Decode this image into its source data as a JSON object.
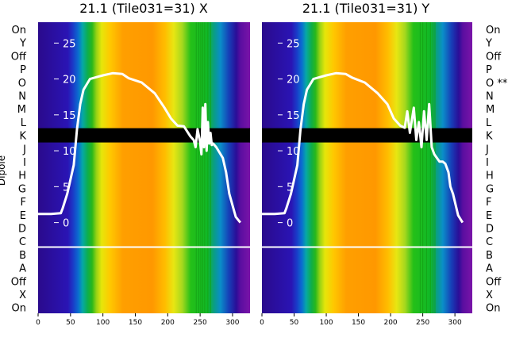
{
  "chart_data": [
    {
      "type": "heatmap",
      "title": "21.1 (Tile031=31) X",
      "ylabel": "Dipole",
      "row_labels_left": [
        "On",
        "Y",
        "Off",
        "P",
        "O",
        "N",
        "M",
        "L",
        "K",
        "J",
        "I",
        "H",
        "G",
        "F",
        "E",
        "D",
        "C",
        "B",
        "A",
        "Off",
        "X",
        "On"
      ],
      "xlim": [
        0,
        327
      ],
      "xticks": [
        0,
        50,
        100,
        150,
        200,
        250,
        300
      ],
      "overlay_ylim": [
        -2.5,
        27.5
      ],
      "overlay_yticks": [
        0,
        5,
        10,
        15,
        20,
        25
      ],
      "colormap": "nipy_spectral",
      "flagged_rows": [
        "K"
      ],
      "series": [
        {
          "x": [
            0,
            20,
            35,
            38,
            45,
            55,
            60,
            65,
            70,
            80,
            100,
            115,
            130,
            140,
            160,
            180,
            195,
            205,
            215,
            225,
            235,
            240,
            243,
            246,
            250,
            252,
            254,
            256,
            258,
            260,
            262,
            264,
            266,
            268,
            270,
            275,
            285,
            290,
            295,
            305,
            312
          ],
          "y": [
            1.2,
            1.2,
            1.3,
            2,
            4,
            8,
            13,
            16.5,
            18.5,
            20,
            20.5,
            20.8,
            20.7,
            20.1,
            19.5,
            18,
            16,
            14.5,
            13.5,
            13.4,
            12,
            11.5,
            10.5,
            13,
            11.2,
            9.5,
            16,
            10.5,
            16.5,
            10,
            14,
            11,
            12.5,
            10.8,
            11,
            10.5,
            9,
            7,
            4,
            0.8,
            0
          ]
        }
      ]
    },
    {
      "type": "heatmap",
      "title": "21.1 (Tile031=31) Y",
      "row_labels_right": [
        "On",
        "Y",
        "Off",
        "P",
        "O **",
        "N",
        "M",
        "L",
        "K",
        "J",
        "I",
        "H",
        "G",
        "F",
        "E",
        "D",
        "C",
        "B",
        "A",
        "Off",
        "X",
        "On"
      ],
      "xlim": [
        0,
        327
      ],
      "xticks": [
        0,
        50,
        100,
        150,
        200,
        250,
        300
      ],
      "overlay_ylim": [
        -2.5,
        27.5
      ],
      "overlay_yticks": [
        0,
        5,
        10,
        15,
        20,
        25
      ],
      "colormap": "nipy_spectral",
      "flagged_rows": [
        "K"
      ],
      "series": [
        {
          "x": [
            0,
            20,
            35,
            38,
            45,
            55,
            60,
            65,
            70,
            80,
            100,
            115,
            130,
            140,
            160,
            180,
            195,
            205,
            215,
            222,
            226,
            230,
            236,
            240,
            244,
            248,
            252,
            256,
            260,
            264,
            268,
            272,
            276,
            281,
            285,
            290,
            293,
            297,
            305,
            312
          ],
          "y": [
            1.2,
            1.2,
            1.3,
            2,
            4,
            8,
            13,
            16.5,
            18.5,
            20,
            20.5,
            20.8,
            20.7,
            20.2,
            19.5,
            18,
            16.5,
            14.5,
            13.5,
            13.2,
            15.5,
            12.5,
            16,
            11.5,
            14,
            10.5,
            15.5,
            11.5,
            16.5,
            10.5,
            9.5,
            9,
            8.5,
            8.5,
            8.2,
            7,
            5,
            4,
            1,
            0
          ]
        }
      ]
    }
  ]
}
